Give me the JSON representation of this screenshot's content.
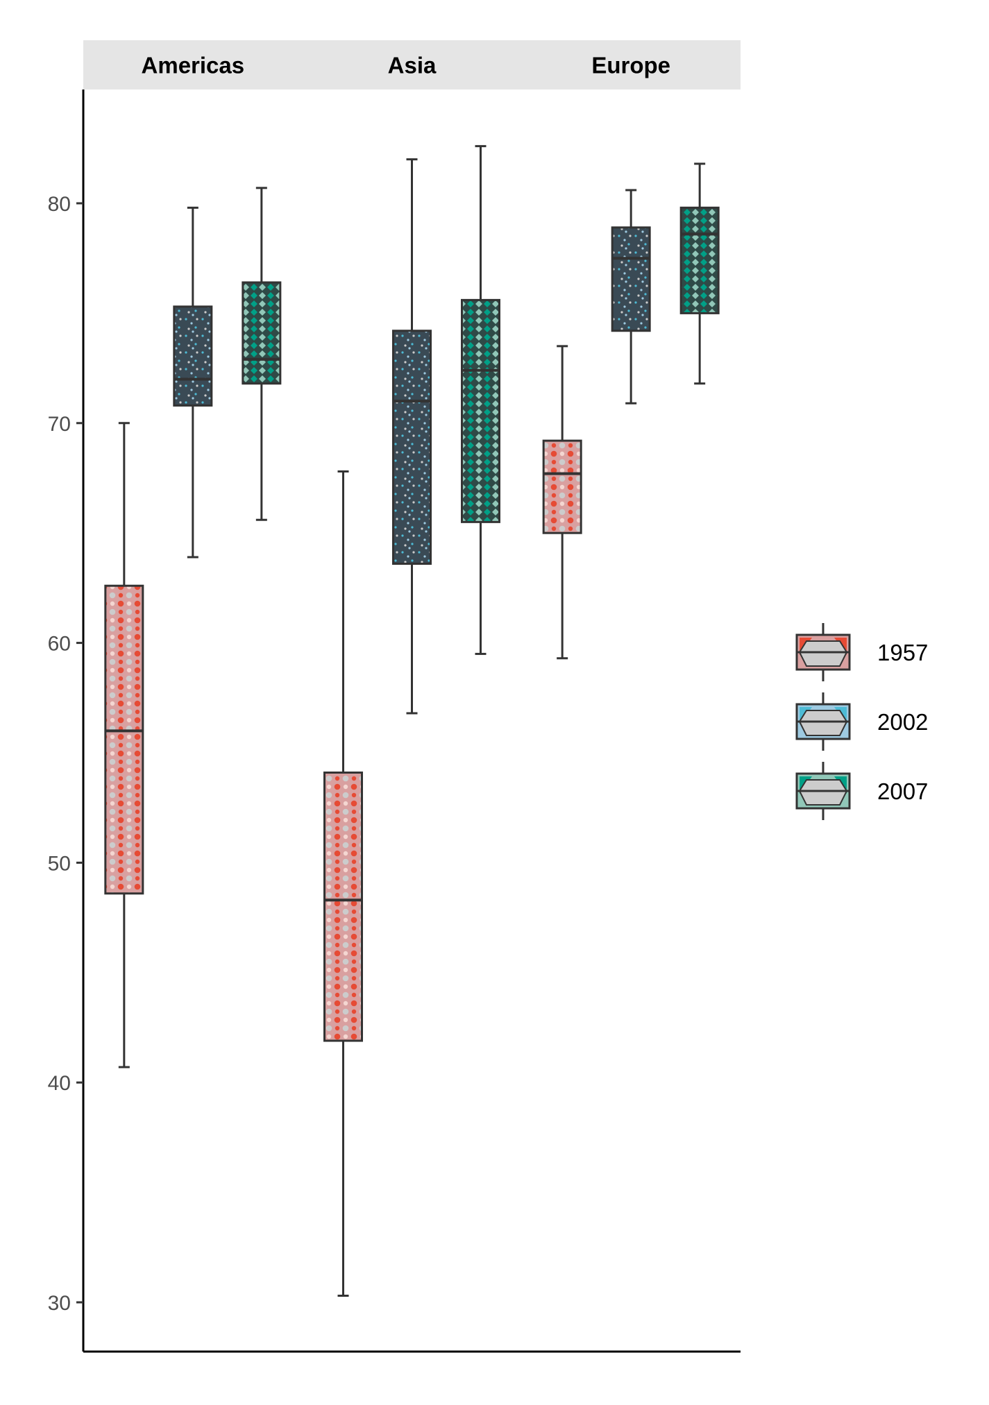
{
  "chart_data": {
    "type": "boxplot",
    "facets": [
      "Americas",
      "Asia",
      "Europe"
    ],
    "ylim": [
      28,
      85
    ],
    "y_ticks": [
      30,
      40,
      50,
      60,
      70,
      80
    ],
    "xlabel": "",
    "ylabel": "",
    "legend": {
      "position": "right",
      "entries": [
        "1957",
        "2002",
        "2007"
      ]
    },
    "colors": {
      "1957": [
        "#e64b35",
        "#d9a0a0",
        "#cccccc"
      ],
      "2002": [
        "#4dbbd5",
        "#9ecae1",
        "#cccccc"
      ],
      "2007": [
        "#00a087",
        "#91c7b8",
        "#cccccc"
      ]
    },
    "series": [
      {
        "name": "1957",
        "boxes": [
          {
            "facet": "Americas",
            "low": 40.7,
            "q1": 48.6,
            "median": 56.0,
            "q3": 62.6,
            "high": 70.0
          },
          {
            "facet": "Asia",
            "low": 30.3,
            "q1": 41.9,
            "median": 48.3,
            "q3": 54.1,
            "high": 67.8
          },
          {
            "facet": "Europe",
            "low": 59.3,
            "q1": 65.0,
            "median": 67.7,
            "q3": 69.2,
            "high": 73.5
          }
        ]
      },
      {
        "name": "2002",
        "boxes": [
          {
            "facet": "Americas",
            "low": 63.9,
            "q1": 70.8,
            "median": 72.0,
            "q3": 75.3,
            "high": 79.8
          },
          {
            "facet": "Asia",
            "low": 56.8,
            "q1": 63.6,
            "median": 71.0,
            "q3": 74.2,
            "high": 82.0
          },
          {
            "facet": "Europe",
            "low": 70.9,
            "q1": 74.2,
            "median": 77.5,
            "q3": 78.9,
            "high": 80.6
          }
        ]
      },
      {
        "name": "2007",
        "boxes": [
          {
            "facet": "Americas",
            "low": 65.6,
            "q1": 71.8,
            "median": 72.9,
            "q3": 76.4,
            "high": 80.7
          },
          {
            "facet": "Asia",
            "low": 59.5,
            "q1": 65.5,
            "median": 72.4,
            "q3": 75.6,
            "high": 82.6
          },
          {
            "facet": "Europe",
            "low": 71.8,
            "q1": 75.0,
            "median": 78.6,
            "q3": 79.8,
            "high": 81.8
          }
        ]
      }
    ]
  }
}
